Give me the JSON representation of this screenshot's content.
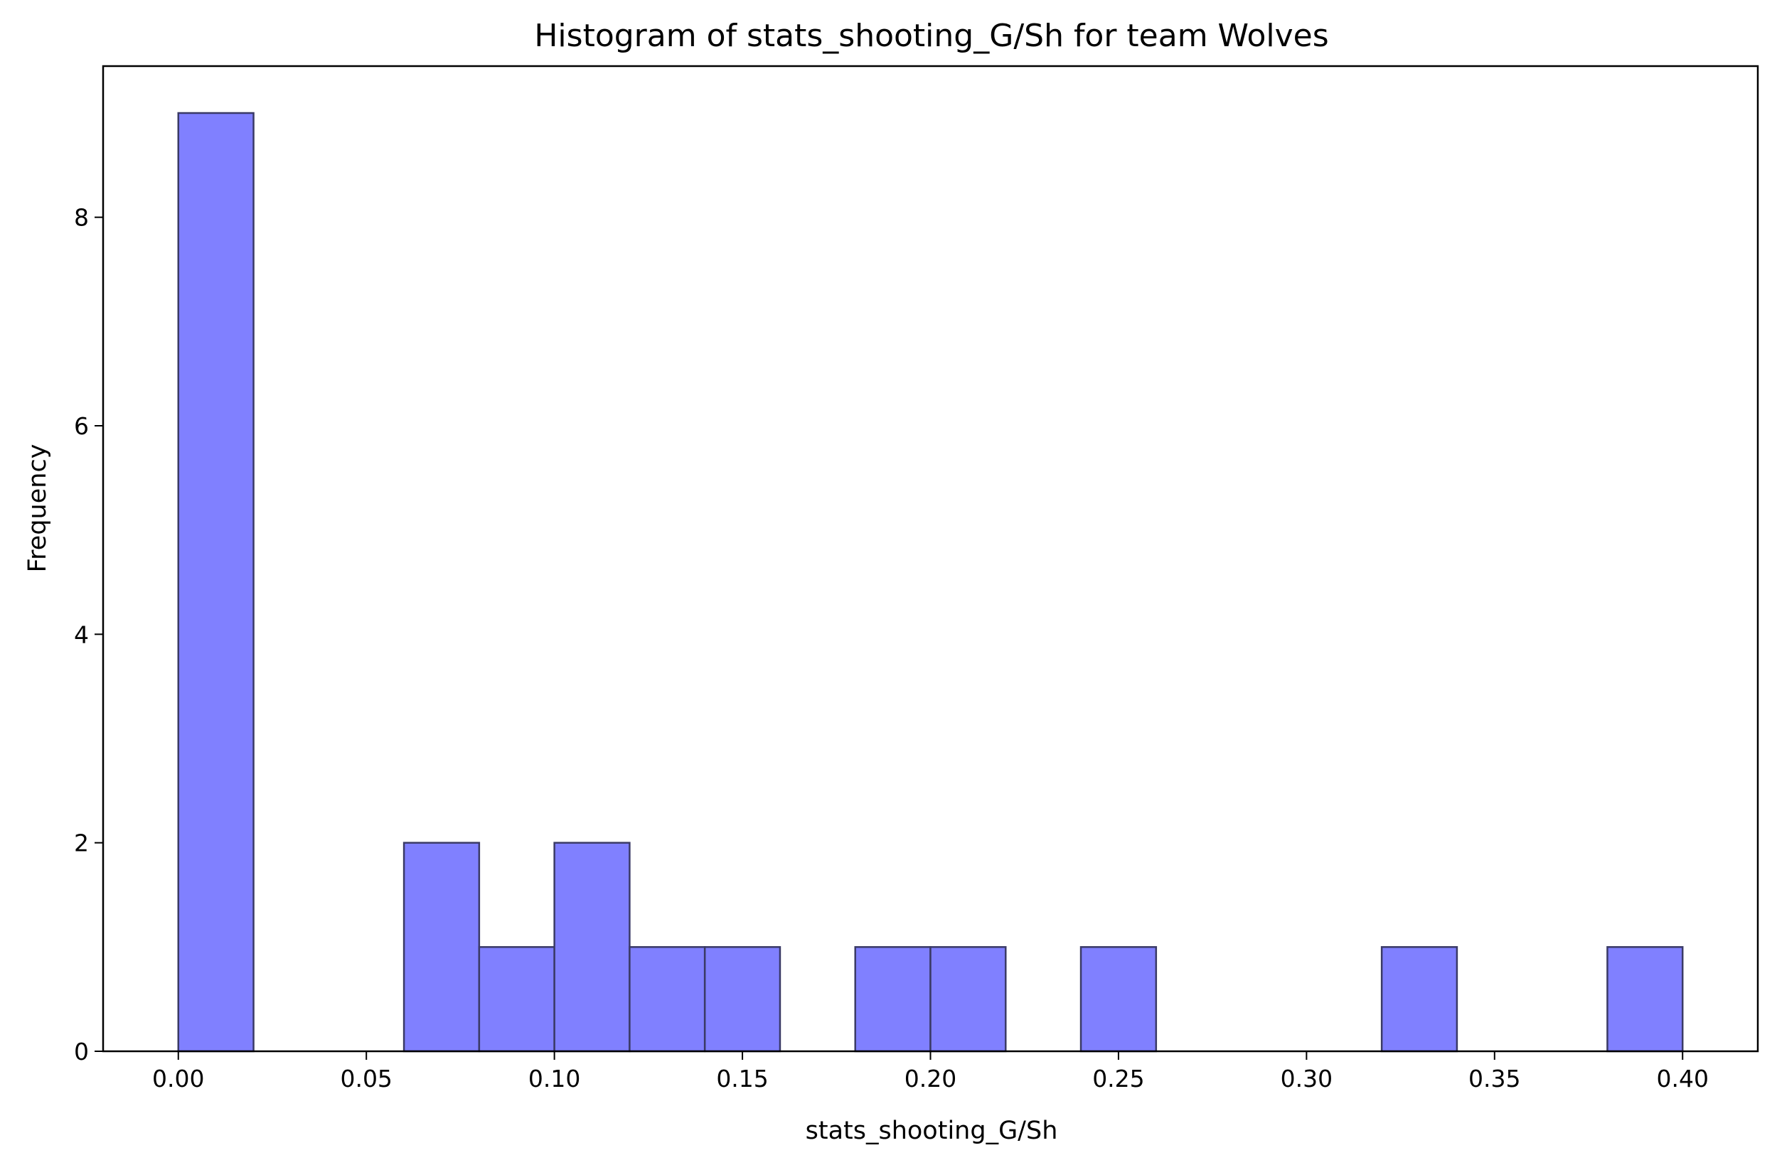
{
  "chart_data": {
    "type": "histogram",
    "title": "Histogram of stats_shooting_G/Sh for team Wolves",
    "xlabel": "stats_shooting_G/Sh",
    "ylabel": "Frequency",
    "bin_edges": [
      0.0,
      0.02,
      0.04,
      0.06,
      0.08,
      0.1,
      0.12,
      0.14,
      0.16,
      0.18,
      0.2,
      0.22,
      0.24,
      0.26,
      0.28,
      0.3,
      0.32,
      0.34,
      0.36,
      0.38,
      0.4
    ],
    "counts": [
      9,
      0,
      0,
      2,
      1,
      2,
      1,
      1,
      0,
      1,
      1,
      0,
      1,
      0,
      0,
      0,
      1,
      0,
      0,
      1
    ],
    "xlim": [
      -0.02,
      0.42
    ],
    "ylim": [
      0,
      9.45
    ],
    "x_ticks": [
      0.0,
      0.05,
      0.1,
      0.15,
      0.2,
      0.25,
      0.3,
      0.35,
      0.4
    ],
    "x_tick_labels": [
      "0.00",
      "0.05",
      "0.10",
      "0.15",
      "0.20",
      "0.25",
      "0.30",
      "0.35",
      "0.40"
    ],
    "y_ticks": [
      0,
      2,
      4,
      6,
      8
    ],
    "y_tick_labels": [
      "0",
      "2",
      "4",
      "6",
      "8"
    ],
    "grid": false,
    "legend": "none",
    "colors": {
      "bar_fill": "#8080ff",
      "bar_edge": "#3a3a66",
      "axes": "#000000",
      "background": "#ffffff"
    }
  }
}
